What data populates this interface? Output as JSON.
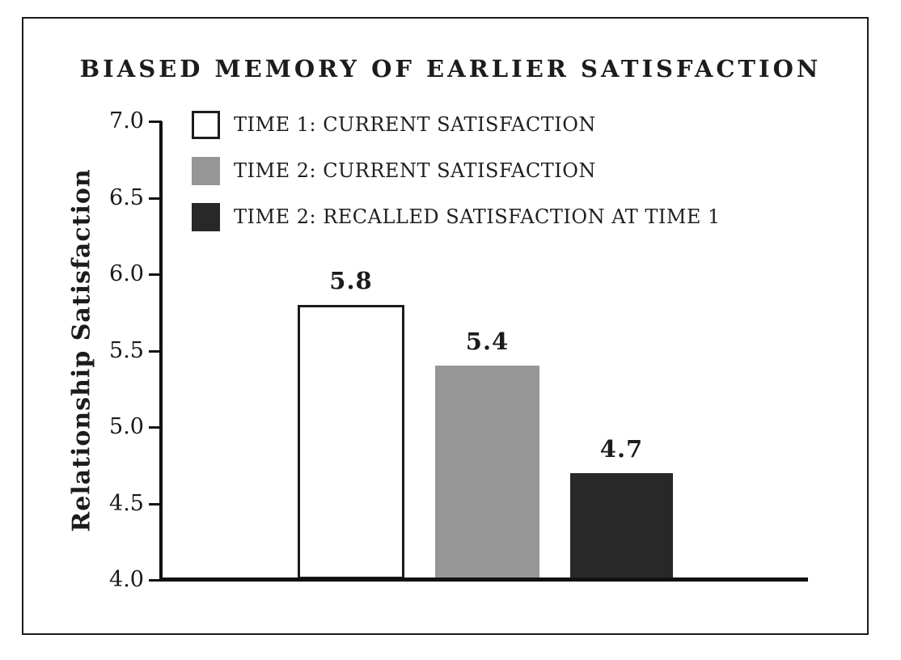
{
  "chart_data": {
    "type": "bar",
    "title": "BIASED MEMORY OF EARLIER SATISFACTION",
    "ylabel": "Relationship Satisfaction",
    "xlabel": "",
    "ylim": [
      4.0,
      7.0
    ],
    "ytick_step": 0.5,
    "ytick_labels": [
      "7.0",
      "6.5",
      "6.0",
      "5.5",
      "5.0",
      "4.5",
      "4.0"
    ],
    "grid": false,
    "legend_position": "upper-left-inside",
    "value_labels_shown": true,
    "series": [
      {
        "name": "TIME 1: CURRENT SATISFACTION",
        "value": 5.8,
        "value_label": "5.8",
        "fill": "#ffffff",
        "border": "#1c1c1c"
      },
      {
        "name": "TIME 2: CURRENT SATISFACTION",
        "value": 5.4,
        "value_label": "5.4",
        "fill": "#969696",
        "border": "#969696"
      },
      {
        "name": "TIME 2: RECALLED SATISFACTION AT TIME 1",
        "value": 4.7,
        "value_label": "4.7",
        "fill": "#282828",
        "border": "#282828"
      }
    ],
    "colors": {
      "background": "#ffffff",
      "frame_border": "#1c1c1c",
      "axis": "#111111",
      "text": "#1c1c1c",
      "bar_white": "#ffffff",
      "bar_gray": "#969696",
      "bar_dark": "#282828"
    }
  }
}
